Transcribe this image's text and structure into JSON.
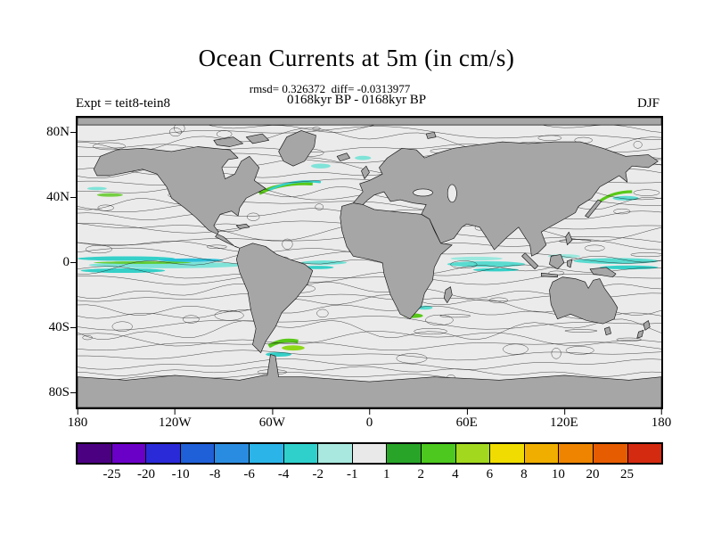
{
  "figure": {
    "title": "Ocean Currents at 5m (in cm/s)",
    "stats_line": "rmsd= 0.326372  diff= -0.0313977",
    "period_line": "0168kyr BP - 0168kyr BP",
    "experiment_label": "Expt = teit8-tein8",
    "season_label": "DJF"
  },
  "chart_data": {
    "type": "heatmap",
    "title": "Ocean Currents at 5m (in cm/s)",
    "subtitle": "0168kyr BP - 0168kyr BP",
    "experiment": "teit8-tein8",
    "season": "DJF",
    "stats": {
      "rmsd": 0.326372,
      "diff": -0.0313977
    },
    "units": "cm/s",
    "map_style": {
      "projection": "equirectangular",
      "land_color": "#a6a6a6",
      "ocean_color": "#ebebeb",
      "field": "filled contour difference of ocean current speed with overlaid contour lines"
    },
    "x_ticks": [
      "180",
      "120W",
      "60W",
      "0",
      "60E",
      "120E",
      "180"
    ],
    "y_ticks": [
      "80N",
      "40N",
      "0",
      "40S",
      "80S"
    ],
    "colorbar": {
      "tick_labels": [
        "-25",
        "-20",
        "-10",
        "-8",
        "-6",
        "-4",
        "-2",
        "-1",
        "1",
        "2",
        "4",
        "6",
        "8",
        "10",
        "20",
        "25"
      ],
      "colors": [
        "#4b0082",
        "#6a00c8",
        "#2a2ad8",
        "#1f5fd8",
        "#2a8ce0",
        "#2ab4e8",
        "#2fd0cc",
        "#a8e8de",
        "#e9e9e9",
        "#28a428",
        "#4cc81e",
        "#a2d81e",
        "#f0dc00",
        "#f0ae00",
        "#ee8400",
        "#e65c00",
        "#d42a10"
      ]
    }
  }
}
